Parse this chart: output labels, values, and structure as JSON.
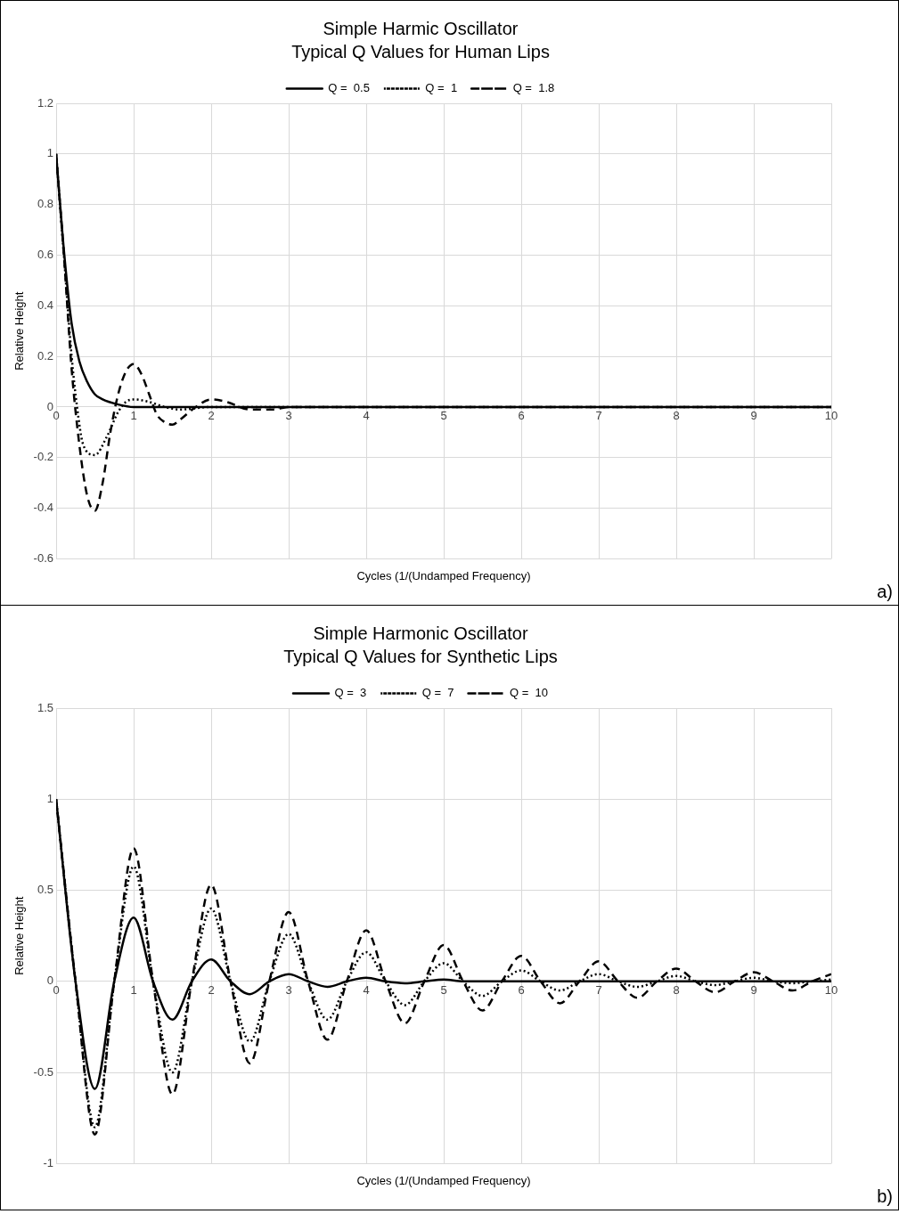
{
  "chart_data": [
    {
      "type": "line",
      "title": "Simple Harmic Oscillator",
      "subtitle": "Typical Q Values for Human Lips",
      "xlabel": "Cycles (1/(Undamped Frequency)",
      "ylabel": "Relative Height",
      "xlim": [
        0,
        10
      ],
      "xticks": [
        0,
        1,
        2,
        3,
        4,
        5,
        6,
        7,
        8,
        9,
        10
      ],
      "ylim": [
        -0.6,
        1.2
      ],
      "yticks": [
        -0.6,
        -0.4,
        -0.2,
        0,
        0.2,
        0.4,
        0.6,
        0.8,
        1,
        1.2
      ],
      "grid": true,
      "legend": "top",
      "marker": "none",
      "annotations": [
        "a)"
      ],
      "series": [
        {
          "name": "Q =  0.5",
          "color": "#000000",
          "line_style": "solid",
          "x": [
            0,
            0.1,
            0.2,
            0.3,
            0.4,
            0.5,
            0.6,
            0.8,
            1,
            10
          ],
          "values": [
            1,
            0.62,
            0.33,
            0.18,
            0.1,
            0.05,
            0.03,
            0.01,
            0,
            0
          ]
        },
        {
          "name": "Q =  1",
          "color": "#000000",
          "line_style": "dotted",
          "x": [
            0,
            0.1,
            0.2,
            0.27,
            0.35,
            0.5,
            0.65,
            0.8,
            0.9,
            1,
            1.2,
            1.4,
            1.6,
            2,
            10
          ],
          "values": [
            1,
            0.6,
            0.2,
            0,
            -0.15,
            -0.19,
            -0.12,
            -0.02,
            0.02,
            0.03,
            0.02,
            0,
            -0.01,
            0,
            0
          ]
        },
        {
          "name": "Q =  1.8",
          "color": "#000000",
          "line_style": "dashed",
          "x": [
            0,
            0.1,
            0.2,
            0.3,
            0.4,
            0.5,
            0.6,
            0.7,
            0.8,
            0.9,
            1,
            1.1,
            1.2,
            1.3,
            1.4,
            1.5,
            1.6,
            1.8,
            2,
            2.2,
            2.5,
            2.8,
            3,
            10
          ],
          "values": [
            1,
            0.6,
            0.15,
            -0.15,
            -0.35,
            -0.41,
            -0.3,
            -0.1,
            0.05,
            0.14,
            0.17,
            0.13,
            0.05,
            -0.03,
            -0.06,
            -0.07,
            -0.05,
            0,
            0.03,
            0.02,
            -0.01,
            -0.01,
            0,
            0
          ]
        }
      ]
    },
    {
      "type": "line",
      "title": "Simple Harmonic Oscillator",
      "subtitle": "Typical Q Values for Synthetic Lips",
      "xlabel": "Cycles (1/(Undamped Frequency)",
      "ylabel": "Relative Height",
      "xlim": [
        0,
        10
      ],
      "xticks": [
        0,
        1,
        2,
        3,
        4,
        5,
        6,
        7,
        8,
        9,
        10
      ],
      "ylim": [
        -1,
        1.5
      ],
      "yticks": [
        -1,
        -0.5,
        0,
        0.5,
        1,
        1.5
      ],
      "grid": true,
      "legend": "top",
      "marker": "none",
      "annotations": [
        "b)"
      ],
      "x": [
        0,
        0.25,
        0.5,
        0.75,
        1,
        1.25,
        1.5,
        1.75,
        2,
        2.25,
        2.5,
        2.75,
        3,
        3.25,
        3.5,
        3.75,
        4,
        4.25,
        4.5,
        4.75,
        5,
        5.25,
        5.5,
        5.75,
        6,
        6.25,
        6.5,
        6.75,
        7,
        7.25,
        7.5,
        7.75,
        8,
        8.25,
        8.5,
        8.75,
        9,
        9.25,
        9.5,
        9.75,
        10
      ],
      "series": [
        {
          "name": "Q =  3",
          "color": "#000000",
          "line_style": "solid",
          "values": [
            1,
            0,
            -0.59,
            0,
            0.35,
            0,
            -0.21,
            0,
            0.12,
            0,
            -0.07,
            0,
            0.04,
            0,
            -0.03,
            0,
            0.02,
            0,
            -0.01,
            0,
            0.01,
            0,
            0,
            0,
            0,
            0,
            0,
            0,
            0,
            0,
            0,
            0,
            0,
            0,
            0,
            0,
            0,
            0,
            0,
            0,
            0
          ]
        },
        {
          "name": "Q =  7",
          "color": "#000000",
          "line_style": "dotted",
          "values": [
            1,
            0,
            -0.8,
            0,
            0.63,
            0,
            -0.5,
            0,
            0.4,
            0,
            -0.33,
            0,
            0.26,
            0,
            -0.21,
            0,
            0.16,
            0,
            -0.13,
            0,
            0.1,
            0,
            -0.08,
            0,
            0.06,
            0,
            -0.05,
            0,
            0.04,
            0,
            -0.03,
            0,
            0.03,
            0,
            -0.02,
            0,
            0.02,
            0,
            -0.01,
            0,
            0.01
          ]
        },
        {
          "name": "Q =  10",
          "color": "#000000",
          "line_style": "dashed",
          "values": [
            1,
            0,
            -0.84,
            0,
            0.73,
            0,
            -0.62,
            0,
            0.53,
            0,
            -0.45,
            0,
            0.38,
            0,
            -0.32,
            0,
            0.28,
            0,
            -0.23,
            0,
            0.2,
            0,
            -0.16,
            0,
            0.14,
            0,
            -0.12,
            0,
            0.11,
            0,
            -0.09,
            0,
            0.07,
            0,
            -0.06,
            0,
            0.05,
            0,
            -0.05,
            0,
            0.04
          ]
        }
      ]
    }
  ]
}
